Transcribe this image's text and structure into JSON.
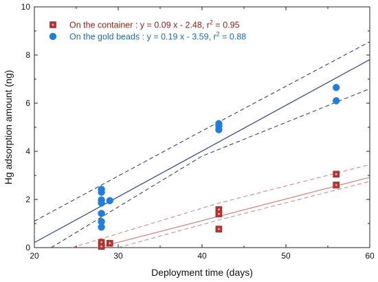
{
  "chart_data": {
    "type": "scatter",
    "xlabel": "Deployment time (days)",
    "ylabel": "Hg adsorption amount (ng)",
    "xlim": [
      20,
      60
    ],
    "ylim": [
      0,
      10
    ],
    "x_ticks": [
      "20",
      "30",
      "40",
      "50",
      "60"
    ],
    "y_ticks": [
      "0",
      "2",
      "4",
      "6",
      "8",
      "10"
    ],
    "grid": false,
    "legend_position": "top-left",
    "series": [
      {
        "name": "container",
        "legend": {
          "prefix": "On the container : y = 0.09 x - 2.48, r",
          "sup": "2",
          "suffix": " = 0.95"
        },
        "color": "#c0302c",
        "fit_color": "#e07a77",
        "ci_color": "#e07a77",
        "marker": "square",
        "points": [
          {
            "x": 28,
            "y": 0.22
          },
          {
            "x": 28,
            "y": 0.05
          },
          {
            "x": 29,
            "y": 0.18
          },
          {
            "x": 42,
            "y": 1.58
          },
          {
            "x": 42,
            "y": 1.4
          },
          {
            "x": 42,
            "y": 0.77
          },
          {
            "x": 56,
            "y": 3.05
          },
          {
            "x": 56,
            "y": 2.6
          }
        ],
        "fit": {
          "slope": 0.09,
          "intercept": -2.48,
          "x_from": 27.5,
          "x_to": 60
        },
        "ci_upper": [
          [
            24.5,
            0.0
          ],
          [
            42,
            1.85
          ],
          [
            60,
            3.45
          ]
        ],
        "ci_lower": [
          [
            30,
            0.0
          ],
          [
            42,
            1.15
          ],
          [
            60,
            2.75
          ]
        ]
      },
      {
        "name": "gold beads",
        "legend": {
          "prefix": "On the gold beads : y = 0.19 x - 3.59, r",
          "sup": "2",
          "suffix": " = 0.88"
        },
        "color": "#1f7fe0",
        "fit_color": "#2b3aa0",
        "ci_color": "#333333",
        "marker": "circle",
        "points": [
          {
            "x": 28,
            "y": 2.42
          },
          {
            "x": 28,
            "y": 2.3
          },
          {
            "x": 28,
            "y": 1.98
          },
          {
            "x": 28,
            "y": 1.85
          },
          {
            "x": 28,
            "y": 1.42
          },
          {
            "x": 28,
            "y": 1.08
          },
          {
            "x": 28,
            "y": 0.85
          },
          {
            "x": 29,
            "y": 1.95
          },
          {
            "x": 42,
            "y": 5.15
          },
          {
            "x": 42,
            "y": 5.05
          },
          {
            "x": 42,
            "y": 4.9
          },
          {
            "x": 56,
            "y": 6.65
          },
          {
            "x": 56,
            "y": 6.1
          }
        ],
        "fit": {
          "slope": 0.19,
          "intercept": -3.59,
          "x_from": 20,
          "x_to": 60
        },
        "ci_upper": [
          [
            20,
            1.1
          ],
          [
            40,
            4.85
          ],
          [
            60,
            8.55
          ]
        ],
        "ci_lower": [
          [
            22,
            0.0
          ],
          [
            40,
            3.8
          ],
          [
            60,
            6.6
          ]
        ]
      }
    ]
  }
}
